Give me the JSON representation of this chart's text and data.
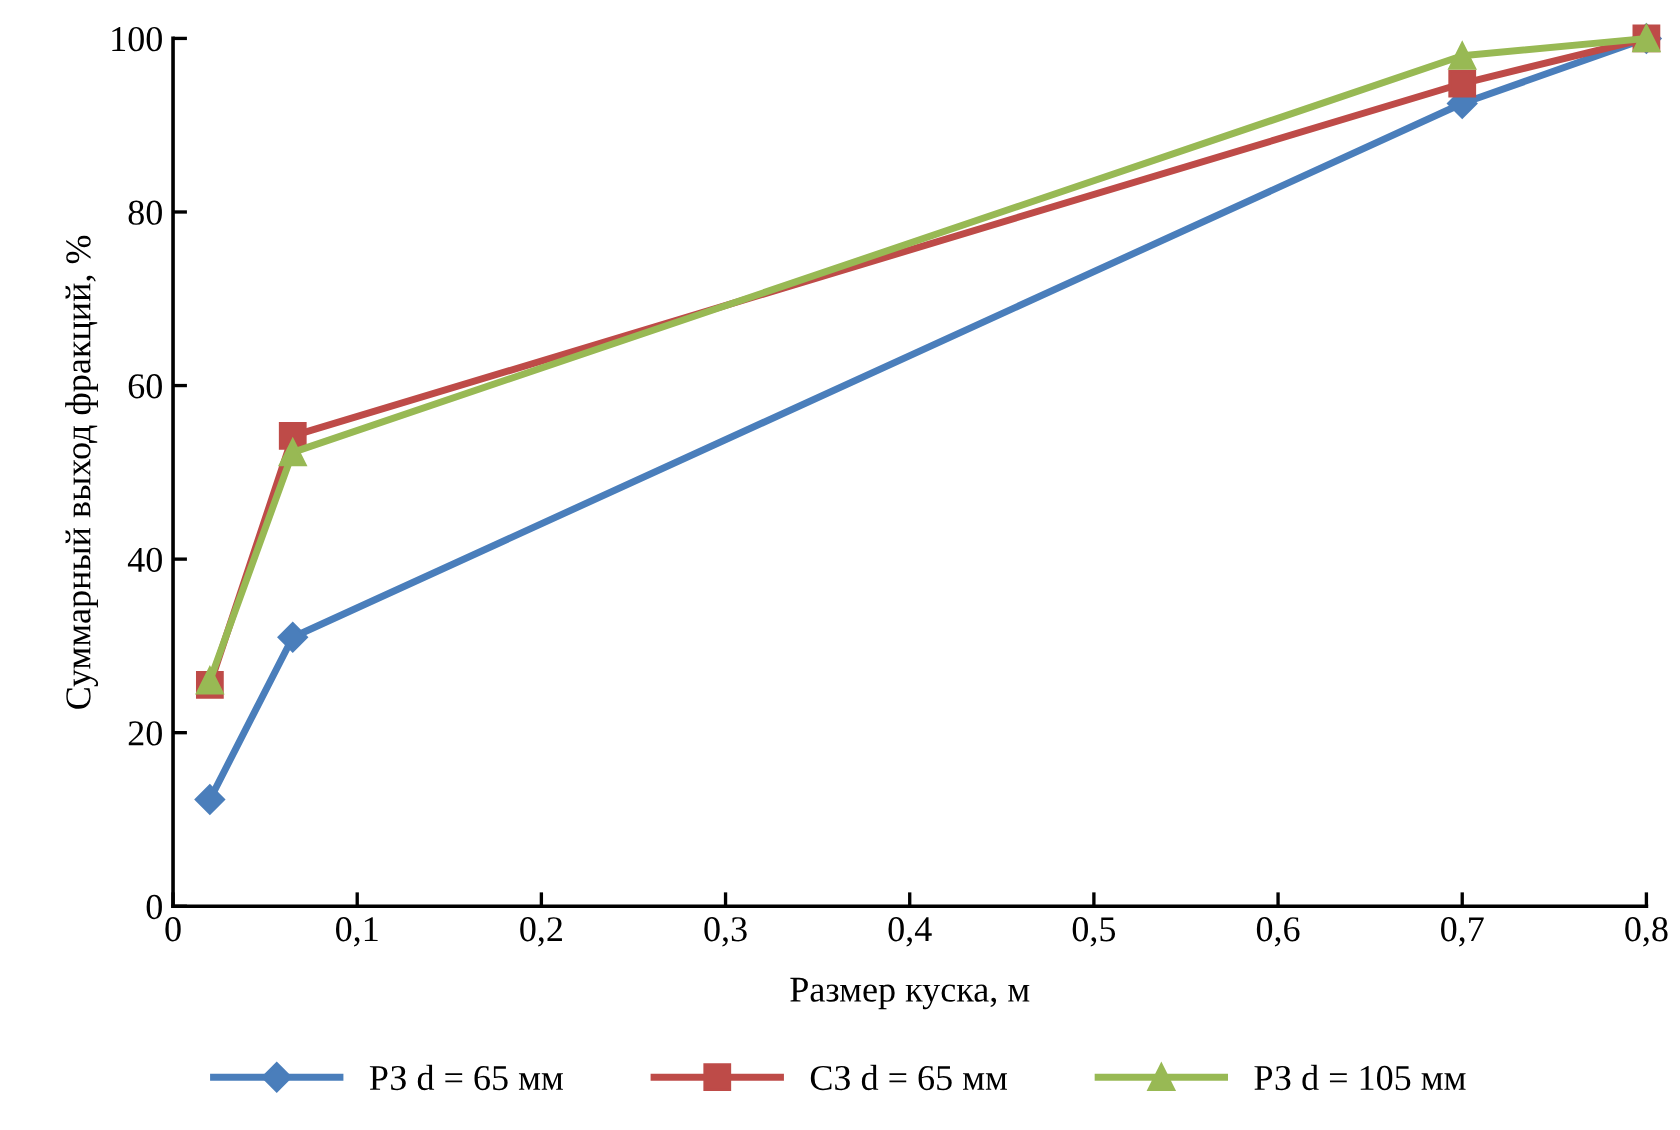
{
  "chart_data": {
    "type": "line",
    "xlabel": "Размер куска, м",
    "ylabel": "Суммарный выход фракций, %",
    "xlim": [
      0,
      0.8
    ],
    "xticks": [
      {
        "value": 0,
        "label": "0"
      },
      {
        "value": 0.1,
        "label": "0,1"
      },
      {
        "value": 0.2,
        "label": "0,2"
      },
      {
        "value": 0.3,
        "label": "0,3"
      },
      {
        "value": 0.4,
        "label": "0,4"
      },
      {
        "value": 0.5,
        "label": "0,5"
      },
      {
        "value": 0.6,
        "label": "0,6"
      },
      {
        "value": 0.7,
        "label": "0,7"
      },
      {
        "value": 0.8,
        "label": "0,8"
      }
    ],
    "ylim": [
      0,
      100
    ],
    "yticks": [
      0,
      20,
      40,
      60,
      80,
      100
    ],
    "x": [
      0.02,
      0.065,
      0.7,
      0.8
    ],
    "series": [
      {
        "name": "РЗ d = 65 мм",
        "color": "#4a7ebb",
        "marker": "diamond",
        "values": [
          12.3,
          31,
          92.5,
          100
        ]
      },
      {
        "name": "СЗ d = 65 мм",
        "color": "#be4b48",
        "marker": "square",
        "values": [
          25.5,
          54.2,
          94.8,
          100
        ]
      },
      {
        "name": "РЗ d = 105 мм",
        "color": "#98b954",
        "marker": "triangle",
        "values": [
          26,
          52.3,
          98,
          100
        ]
      }
    ],
    "grid": false,
    "legend": "bottom",
    "line_style": "solid"
  }
}
